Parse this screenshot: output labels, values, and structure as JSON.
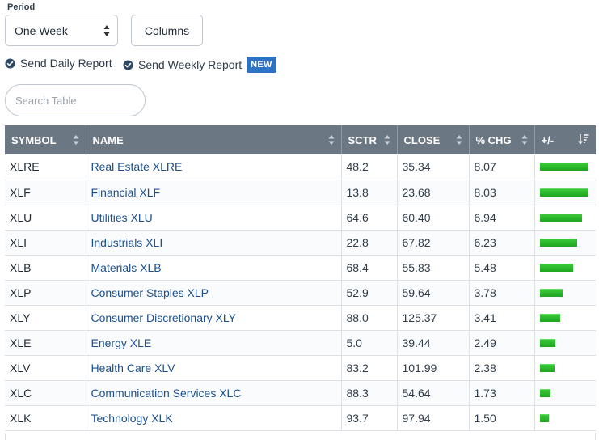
{
  "period": {
    "label": "Period",
    "selected": "One Week"
  },
  "columns_button": "Columns",
  "reports": {
    "daily": "Send Daily Report",
    "weekly": "Send Weekly Report",
    "new_badge": "NEW"
  },
  "search": {
    "placeholder": "Search Table"
  },
  "colors": {
    "header_bg": "#6c7784",
    "link": "#1d4f8c",
    "bar": "#2ab82a",
    "badge": "#2e72c4",
    "check": "#2f4a66"
  },
  "table": {
    "headers": [
      "SYMBOL",
      "NAME",
      "SCTR",
      "CLOSE",
      "% CHG",
      "+/-"
    ],
    "rows": [
      {
        "symbol": "XLRE",
        "name": "Real Estate XLRE",
        "sctr": "48.2",
        "close": "35.34",
        "chg": "8.07",
        "chg_value": 8.07
      },
      {
        "symbol": "XLF",
        "name": "Financial XLF",
        "sctr": "13.8",
        "close": "23.68",
        "chg": "8.03",
        "chg_value": 8.03
      },
      {
        "symbol": "XLU",
        "name": "Utilities XLU",
        "sctr": "64.6",
        "close": "60.40",
        "chg": "6.94",
        "chg_value": 6.94
      },
      {
        "symbol": "XLI",
        "name": "Industrials XLI",
        "sctr": "22.8",
        "close": "67.82",
        "chg": "6.23",
        "chg_value": 6.23
      },
      {
        "symbol": "XLB",
        "name": "Materials XLB",
        "sctr": "68.4",
        "close": "55.83",
        "chg": "5.48",
        "chg_value": 5.48
      },
      {
        "symbol": "XLP",
        "name": "Consumer Staples XLP",
        "sctr": "52.9",
        "close": "59.64",
        "chg": "3.78",
        "chg_value": 3.78
      },
      {
        "symbol": "XLY",
        "name": "Consumer Discretionary XLY",
        "sctr": "88.0",
        "close": "125.37",
        "chg": "3.41",
        "chg_value": 3.41
      },
      {
        "symbol": "XLE",
        "name": "Energy XLE",
        "sctr": "5.0",
        "close": "39.44",
        "chg": "2.49",
        "chg_value": 2.49
      },
      {
        "symbol": "XLV",
        "name": "Health Care XLV",
        "sctr": "83.2",
        "close": "101.99",
        "chg": "2.38",
        "chg_value": 2.38
      },
      {
        "symbol": "XLC",
        "name": "Communication Services XLC",
        "sctr": "88.3",
        "close": "54.64",
        "chg": "1.73",
        "chg_value": 1.73
      },
      {
        "symbol": "XLK",
        "name": "Technology XLK",
        "sctr": "93.7",
        "close": "97.94",
        "chg": "1.50",
        "chg_value": 1.5
      }
    ]
  }
}
